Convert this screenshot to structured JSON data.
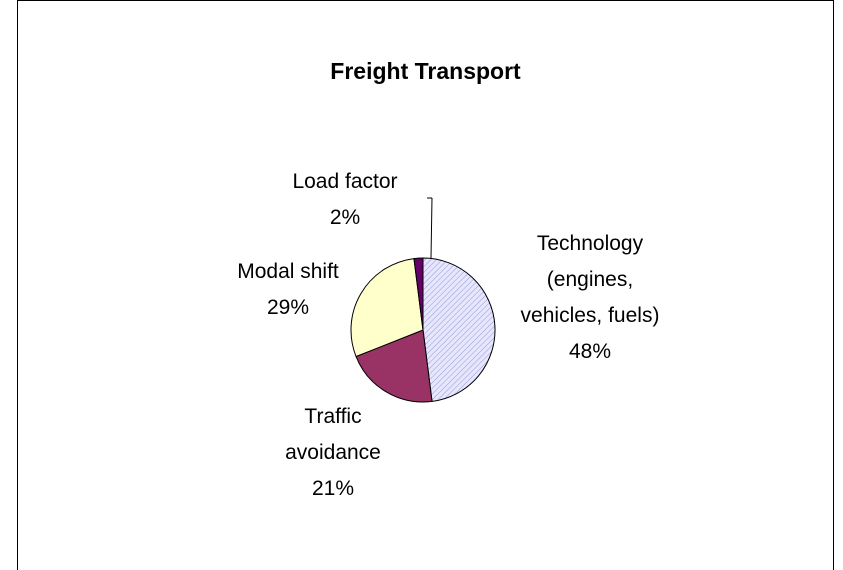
{
  "chart_data": {
    "type": "pie",
    "title": "Freight Transport",
    "categories": [
      "Technology (engines, vehicles, fuels)",
      "Traffic avoidance",
      "Modal shift",
      "Load factor"
    ],
    "values": [
      48,
      21,
      29,
      2
    ],
    "value_labels": [
      "48%",
      "21%",
      "29%",
      "2%"
    ],
    "colors": [
      "#ccccff",
      "#993366",
      "#ffffcc",
      "#660066"
    ]
  }
}
